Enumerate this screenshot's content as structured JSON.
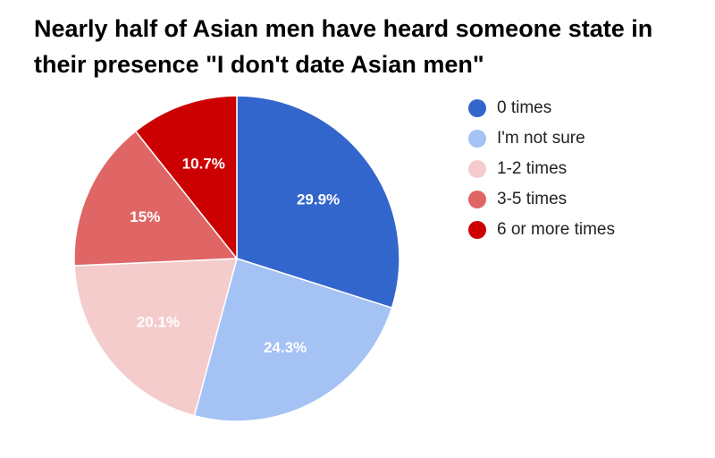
{
  "title": "Nearly half of Asian men have heard someone state in their presence \"I don't date Asian men\"",
  "chart_data": {
    "type": "pie",
    "title": "Nearly half of Asian men have heard someone state in their presence \"I don't date Asian men\"",
    "legend_position": "right",
    "slices": [
      {
        "label": "0 times",
        "value": 29.9,
        "display": "29.9%",
        "color": "#3366cc"
      },
      {
        "label": "I'm not sure",
        "value": 24.3,
        "display": "24.3%",
        "color": "#a4c2f4"
      },
      {
        "label": "1-2 times",
        "value": 20.1,
        "display": "20.1%",
        "color": "#f4cccc"
      },
      {
        "label": "3-5 times",
        "value": 15,
        "display": "15%",
        "color": "#e06666"
      },
      {
        "label": "6 or more times",
        "value": 10.7,
        "display": "10.7%",
        "color": "#cc0000"
      }
    ]
  }
}
